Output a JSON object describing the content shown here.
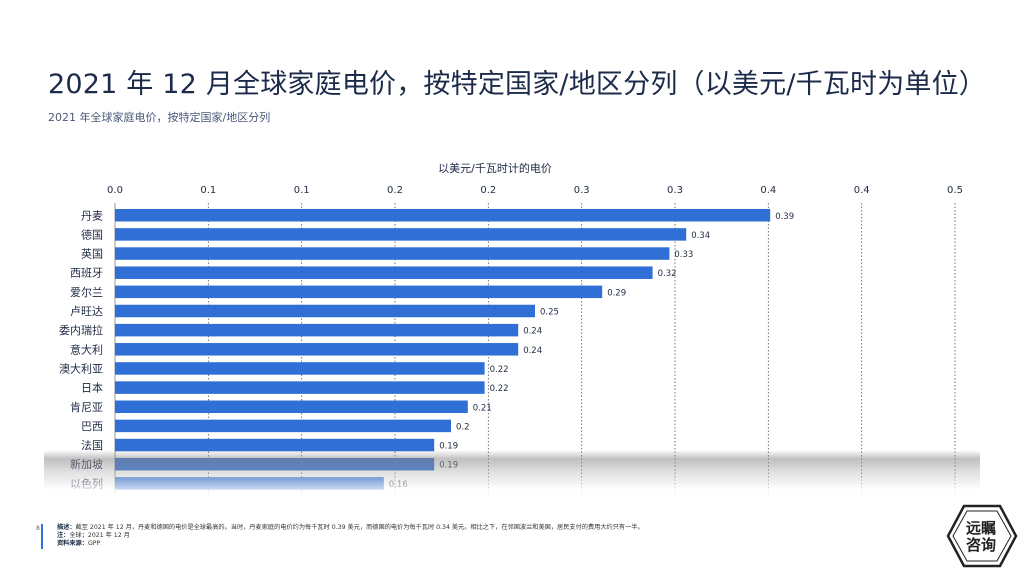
{
  "title": "2021 年 12 月全球家庭电价，按特定国家/地区分列（以美元/千瓦时为单位）",
  "subtitle": "2021 年全球家庭电价，按特定国家/地区分列",
  "chart_data": {
    "type": "bar",
    "orientation": "horizontal",
    "xlabel": "以美元/千瓦时计的电价",
    "xlim": [
      0,
      0.5
    ],
    "tick_labels": [
      "0.0",
      "0.1",
      "0.1",
      "0.2",
      "0.2",
      "0.3",
      "0.3",
      "0.4",
      "0.4",
      "0.5"
    ],
    "grid": true,
    "bar_color": "#2f6fd6",
    "categories": [
      "丹麦",
      "德国",
      "英国",
      "西班牙",
      "爱尔兰",
      "卢旺达",
      "委内瑞拉",
      "意大利",
      "澳大利亚",
      "日本",
      "肯尼亚",
      "巴西",
      "法国",
      "新加坡",
      "以色列"
    ],
    "values": [
      0.39,
      0.34,
      0.33,
      0.32,
      0.29,
      0.25,
      0.24,
      0.24,
      0.22,
      0.22,
      0.21,
      0.2,
      0.19,
      0.19,
      0.16
    ],
    "value_labels": [
      "0.39",
      "0.34",
      "0.33",
      "0.32",
      "0.29",
      "0.25",
      "0.24",
      "0.24",
      "0.22",
      "0.22",
      "0.21",
      "0.2",
      "0.19",
      "0.19",
      "0.16"
    ]
  },
  "footer": {
    "page_number": "8",
    "description_label": "描述：",
    "description": "截至 2021 年 12 月，丹麦和德国的电价是全球最高的。当时，丹麦家庭的电价约为每千瓦时 0.39 美元，而德国的电价为每千瓦时 0.34 美元。相比之下，在邻国波兰和美国，居民支付的费用大约只有一半。",
    "note_label": "注：",
    "note": "全球；2021 年 12 月",
    "source_label": "资料来源：",
    "source": "GPP"
  },
  "logo": {
    "line1": "远瞩",
    "line2": "咨询"
  }
}
